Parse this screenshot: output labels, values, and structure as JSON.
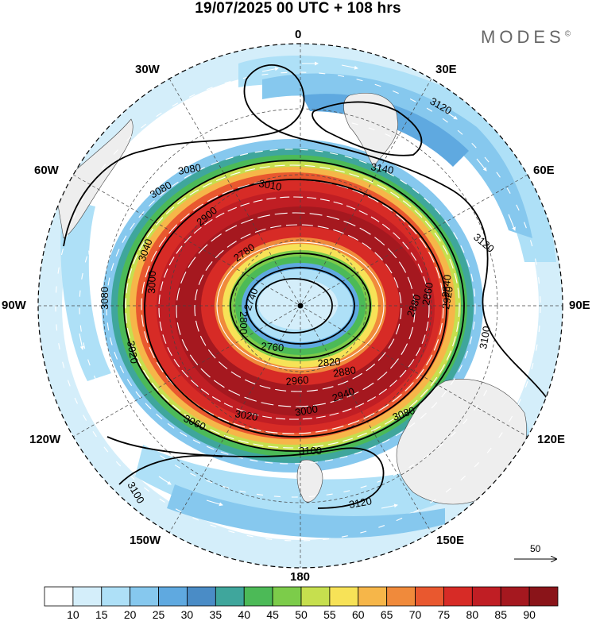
{
  "title": "19/07/2025  00 UTC  + 108 hrs",
  "brand": "MODES",
  "brand_mark": "©",
  "longitude_labels": {
    "lon_0": "0",
    "lon_30e": "30E",
    "lon_60e": "60E",
    "lon_90e": "90E",
    "lon_120e": "120E",
    "lon_150e": "150E",
    "lon_180": "180",
    "lon_150w": "150W",
    "lon_120w": "120W",
    "lon_90w": "90W",
    "lon_60w": "60W",
    "lon_30w": "30W"
  },
  "vector_scale": {
    "label": "50"
  },
  "colorbar": {
    "labels": [
      "10",
      "15",
      "20",
      "25",
      "30",
      "35",
      "40",
      "45",
      "50",
      "55",
      "60",
      "65",
      "70",
      "75",
      "80",
      "85",
      "90"
    ],
    "colors": [
      "#ffffff",
      "#d4eefa",
      "#aee0f7",
      "#86c8ee",
      "#5fa9e0",
      "#4a8cc6",
      "#3fa69c",
      "#4cba57",
      "#7ccc4a",
      "#c6df4e",
      "#f7e257",
      "#f6b649",
      "#f08a3b",
      "#e9582f",
      "#d72b26",
      "#c01e24",
      "#a5181f",
      "#8a1419"
    ]
  },
  "contours": {
    "c2740": "2740",
    "c2760": "2760",
    "c2780": "2780",
    "c2800": "2800",
    "c2820": "2820",
    "c2840": "2840",
    "c2860": "2860",
    "c2880": "2880",
    "c2900": "2900",
    "c2920": "2920",
    "c2940": "2940",
    "c2960": "2960",
    "c3000": "3000",
    "c3010": "3010",
    "c3020": "3020",
    "c3040": "3040",
    "c3060": "3060",
    "c3080": "3080",
    "c3100": "3100",
    "c3120": "3120",
    "c3140": "3140"
  }
}
